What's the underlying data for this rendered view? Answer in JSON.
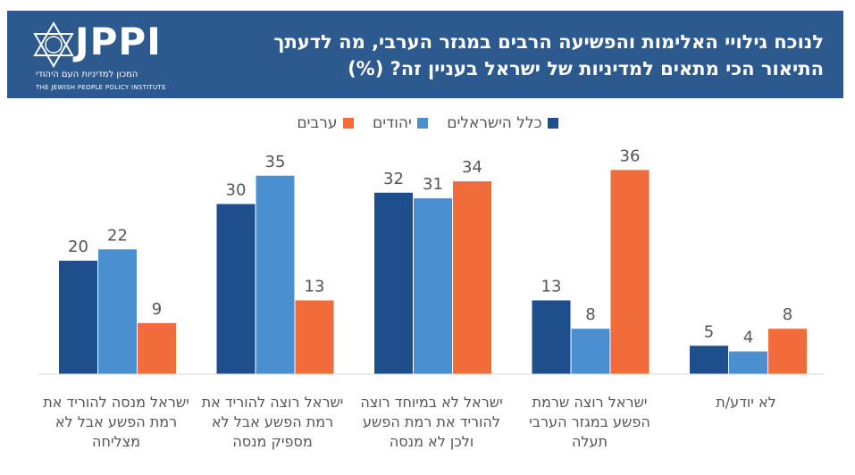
{
  "header": {
    "title": "לנוכח גילויי האלימות והפשיעה הרבים במגזר הערבי, מה לדעתך התיאור הכי מתאים למדיניות של ישראל בעניין זה? (%)",
    "logo_name": "JPPI",
    "logo_hebrew": "המכון למדיניות העם היהודי",
    "logo_english": "THE JEWISH PEOPLE POLICY INSTITUTE",
    "background": "#2d5a8e"
  },
  "legend": [
    {
      "label": "כלל הישראלים",
      "color": "#1f4e8c"
    },
    {
      "label": "יהודים",
      "color": "#4a90d0"
    },
    {
      "label": "ערבים",
      "color": "#f26b3a"
    }
  ],
  "chart_data": {
    "type": "bar",
    "title": "לנוכח גילויי האלימות והפשיעה הרבים במגזר הערבי, מה לדעתך התיאור הכי מתאים למדיניות של ישראל בעניין זה? (%)",
    "categories": [
      "ישראל מנסה להוריד את רמת הפשע אבל לא מצליחה",
      "ישראל רוצה להוריד את רמת הפשע אבל לא מספיק מנסה",
      "ישראל לא במיוחד רוצה להוריד את רמת הפשע ולכן לא מנסה",
      "ישראל רוצה שרמת הפשע במגזר הערבי תעלה",
      "לא יודע/ת"
    ],
    "series": [
      {
        "name": "כלל הישראלים",
        "color": "#1f4e8c",
        "values": [
          20,
          30,
          32,
          13,
          5
        ]
      },
      {
        "name": "יהודים",
        "color": "#4a90d0",
        "values": [
          22,
          35,
          31,
          8,
          4
        ]
      },
      {
        "name": "ערבים",
        "color": "#f26b3a",
        "values": [
          9,
          13,
          34,
          36,
          8
        ]
      }
    ],
    "ylim": [
      0,
      40
    ],
    "grid": false,
    "legend_position": "top-center",
    "category_order": "left-to-right"
  }
}
